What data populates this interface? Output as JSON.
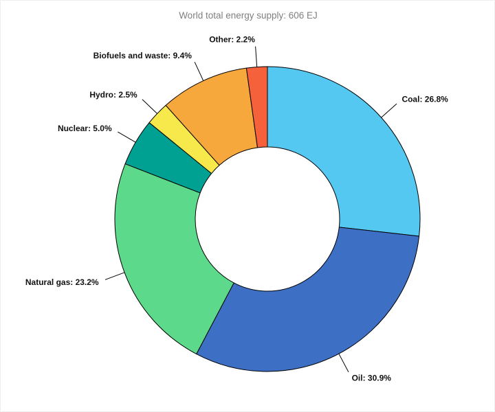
{
  "chart_data": {
    "type": "pie",
    "variant": "donut",
    "title": "World total energy supply: 606 EJ",
    "direction": "clockwise",
    "start_angle_deg": 0,
    "legend_position": "none",
    "grid": false,
    "stroke_color": "#000000",
    "title_color": "#7f7f7f",
    "segments": [
      {
        "label": "Coal",
        "value": 26.8,
        "display": "Coal: 26.8%",
        "color": "#55c8f2"
      },
      {
        "label": "Oil",
        "value": 30.9,
        "display": "Oil: 30.9%",
        "color": "#3d6fc4"
      },
      {
        "label": "Natural gas",
        "value": 23.2,
        "display": "Natural gas: 23.2%",
        "color": "#5cd98a"
      },
      {
        "label": "Nuclear",
        "value": 5.0,
        "display": "Nuclear: 5.0%",
        "color": "#00a093"
      },
      {
        "label": "Hydro",
        "value": 2.5,
        "display": "Hydro: 2.5%",
        "color": "#f7e84b"
      },
      {
        "label": "Biofuels and waste",
        "value": 9.4,
        "display": "Biofuels and waste: 9.4%",
        "color": "#f6a83d"
      },
      {
        "label": "Other",
        "value": 2.2,
        "display": "Other: 2.2%",
        "color": "#f4613a"
      }
    ],
    "total_percent": 100.0,
    "units": "%"
  }
}
